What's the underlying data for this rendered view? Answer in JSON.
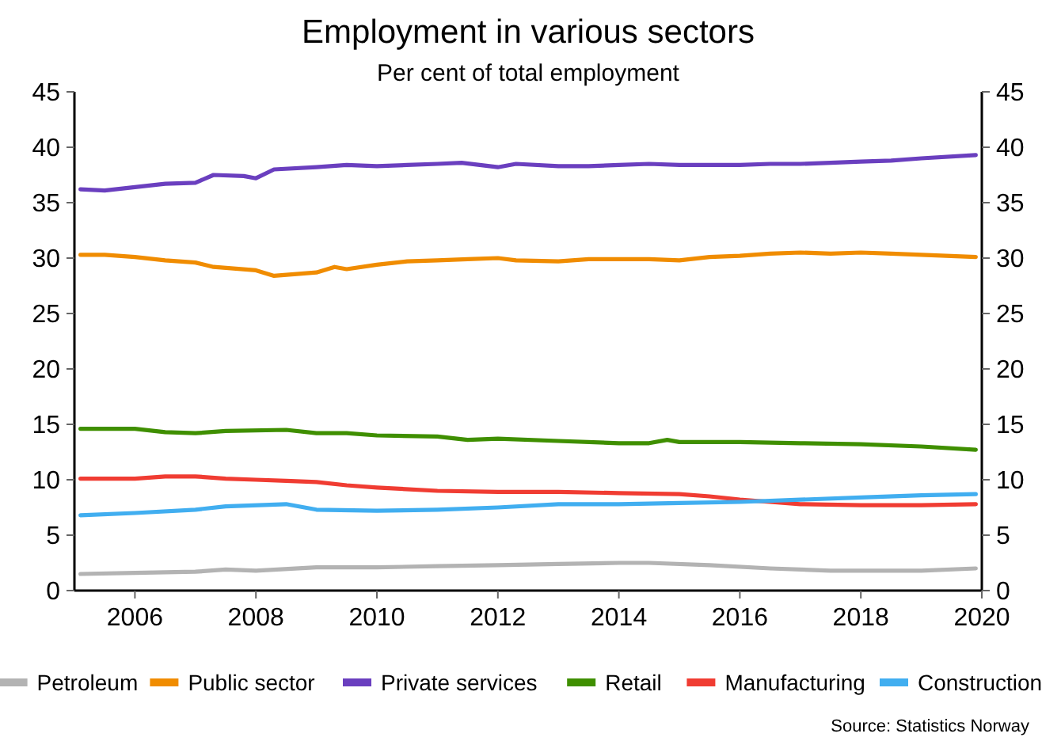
{
  "chart_data": {
    "type": "line",
    "title": "Employment in various sectors",
    "subtitle": "Per cent of total employment",
    "xlim": [
      2005,
      2020
    ],
    "xticks": [
      2006,
      2008,
      2010,
      2012,
      2014,
      2016,
      2018,
      2020
    ],
    "ylim": [
      0,
      45
    ],
    "yticks": [
      0,
      5,
      10,
      15,
      20,
      25,
      30,
      35,
      40,
      45
    ],
    "y2lim": [
      0,
      45
    ],
    "y2ticks": [
      0,
      5,
      10,
      15,
      20,
      25,
      30,
      35,
      40,
      45
    ],
    "legend": "bottom",
    "grid": false,
    "marker": "none",
    "line_style": "solid",
    "annotations": [
      "Source: Statistics Norway"
    ],
    "series": [
      {
        "name": "Petroleum",
        "color": "#b3b3b3",
        "x": [
          2005.1,
          2006,
          2007,
          2007.5,
          2008,
          2009,
          2010,
          2011,
          2012,
          2013,
          2014,
          2014.5,
          2015.5,
          2016.5,
          2017.5,
          2018,
          2019,
          2019.9
        ],
        "values": [
          1.5,
          1.6,
          1.7,
          1.9,
          1.8,
          2.1,
          2.1,
          2.2,
          2.3,
          2.4,
          2.5,
          2.5,
          2.3,
          2.0,
          1.8,
          1.8,
          1.8,
          2.0
        ]
      },
      {
        "name": "Public sector",
        "color": "#f08c00",
        "x": [
          2005.1,
          2005.5,
          2006,
          2006.5,
          2007,
          2007.3,
          2008,
          2008.3,
          2009,
          2009.3,
          2009.5,
          2010,
          2010.5,
          2011,
          2011.5,
          2012,
          2012.3,
          2013,
          2013.5,
          2014,
          2014.5,
          2015,
          2015.5,
          2016,
          2016.5,
          2017,
          2017.5,
          2018,
          2018.5,
          2019,
          2019.9
        ],
        "values": [
          30.3,
          30.3,
          30.1,
          29.8,
          29.6,
          29.2,
          28.9,
          28.4,
          28.7,
          29.2,
          29.0,
          29.4,
          29.7,
          29.8,
          29.9,
          30.0,
          29.8,
          29.7,
          29.9,
          29.9,
          29.9,
          29.8,
          30.1,
          30.2,
          30.4,
          30.5,
          30.4,
          30.5,
          30.4,
          30.3,
          30.1
        ]
      },
      {
        "name": "Private services",
        "color": "#6a3fbf",
        "x": [
          2005.1,
          2005.5,
          2006,
          2006.5,
          2007,
          2007.3,
          2007.8,
          2008,
          2008.3,
          2009,
          2009.5,
          2010,
          2010.5,
          2011,
          2011.4,
          2012,
          2012.3,
          2013,
          2013.5,
          2014,
          2014.5,
          2015,
          2015.5,
          2016,
          2016.5,
          2017,
          2017.5,
          2018,
          2018.5,
          2019,
          2019.9
        ],
        "values": [
          36.2,
          36.1,
          36.4,
          36.7,
          36.8,
          37.5,
          37.4,
          37.2,
          38.0,
          38.2,
          38.4,
          38.3,
          38.4,
          38.5,
          38.6,
          38.2,
          38.5,
          38.3,
          38.3,
          38.4,
          38.5,
          38.4,
          38.4,
          38.4,
          38.5,
          38.5,
          38.6,
          38.7,
          38.8,
          39.0,
          39.3
        ]
      },
      {
        "name": "Retail",
        "color": "#3f8f00",
        "x": [
          2005.1,
          2006,
          2006.5,
          2007,
          2007.5,
          2008.5,
          2009,
          2009.5,
          2010,
          2011,
          2011.5,
          2012,
          2013,
          2014,
          2014.5,
          2014.8,
          2015,
          2016,
          2017,
          2018,
          2019,
          2019.9
        ],
        "values": [
          14.6,
          14.6,
          14.3,
          14.2,
          14.4,
          14.5,
          14.2,
          14.2,
          14.0,
          13.9,
          13.6,
          13.7,
          13.5,
          13.3,
          13.3,
          13.6,
          13.4,
          13.4,
          13.3,
          13.2,
          13.0,
          12.7
        ]
      },
      {
        "name": "Manufacturing",
        "color": "#f03c32",
        "x": [
          2005.1,
          2006,
          2006.5,
          2007,
          2007.5,
          2008,
          2008.5,
          2009,
          2009.5,
          2010,
          2011,
          2012,
          2013,
          2014,
          2015,
          2015.5,
          2016,
          2016.5,
          2017,
          2018,
          2019,
          2019.9
        ],
        "values": [
          10.1,
          10.1,
          10.3,
          10.3,
          10.1,
          10.0,
          9.9,
          9.8,
          9.5,
          9.3,
          9.0,
          8.9,
          8.9,
          8.8,
          8.7,
          8.5,
          8.2,
          8.0,
          7.8,
          7.7,
          7.7,
          7.8
        ]
      },
      {
        "name": "Construction",
        "color": "#41aef0",
        "x": [
          2005.1,
          2006,
          2007,
          2007.5,
          2008.5,
          2009,
          2010,
          2011,
          2012,
          2013,
          2014,
          2015,
          2016,
          2017,
          2018,
          2019,
          2019.9
        ],
        "values": [
          6.8,
          7.0,
          7.3,
          7.6,
          7.8,
          7.3,
          7.2,
          7.3,
          7.5,
          7.8,
          7.8,
          7.9,
          8.0,
          8.2,
          8.4,
          8.6,
          8.7
        ]
      }
    ]
  }
}
